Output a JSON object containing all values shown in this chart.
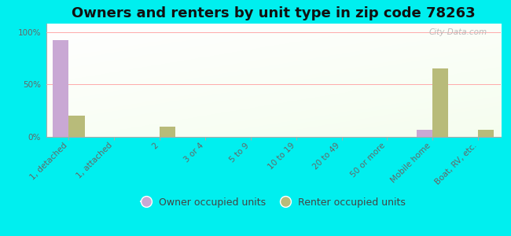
{
  "title": "Owners and renters by unit type in zip code 78263",
  "categories": [
    "1, detached",
    "1, attached",
    "2",
    "3 or 4",
    "5 to 9",
    "10 to 19",
    "20 to 49",
    "50 or more",
    "Mobile home",
    "Boat, RV, etc."
  ],
  "owner_values": [
    92,
    0,
    0,
    0,
    0,
    0,
    0,
    0,
    7,
    0
  ],
  "renter_values": [
    20,
    0,
    10,
    0,
    0,
    0,
    0,
    0,
    65,
    7
  ],
  "owner_color": "#c9a8d4",
  "renter_color": "#b8bb7a",
  "background_color": "#00efef",
  "grid_color": "#ffaaaa",
  "yticks": [
    0,
    50,
    100
  ],
  "ytick_labels": [
    "0%",
    "50%",
    "100%"
  ],
  "bar_width": 0.35,
  "title_fontsize": 13,
  "tick_fontsize": 7.5,
  "legend_fontsize": 9,
  "watermark_text": "City-Data.com"
}
